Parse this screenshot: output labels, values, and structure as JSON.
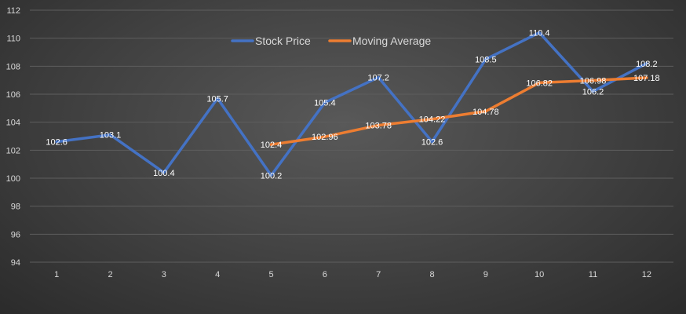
{
  "chart_data": {
    "type": "line",
    "x": [
      1,
      2,
      3,
      4,
      5,
      6,
      7,
      8,
      9,
      10,
      11,
      12
    ],
    "series": [
      {
        "name": "Stock Price",
        "color": "#4472c4",
        "values": [
          102.6,
          103.1,
          100.4,
          105.7,
          100.2,
          105.4,
          107.2,
          102.6,
          108.5,
          110.4,
          106.2,
          108.2
        ],
        "labels": [
          "102.6",
          "103.1",
          "100.4",
          "105.7",
          "100.2",
          "105.4",
          "107.2",
          "102.6",
          "108.5",
          "110.4",
          "106.2",
          "108.2"
        ]
      },
      {
        "name": "Moving Average",
        "color": "#ed7d31",
        "values": [
          null,
          null,
          null,
          null,
          102.4,
          102.96,
          103.78,
          104.22,
          104.78,
          106.82,
          106.98,
          107.18
        ],
        "labels": [
          "",
          "",
          "",
          "",
          "102.4",
          "102.96",
          "103.78",
          "104.22",
          "104.78",
          "106.82",
          "106.98",
          "107.18"
        ]
      }
    ],
    "ylim": [
      94,
      112
    ],
    "yticks": [
      "94",
      "96",
      "98",
      "100",
      "102",
      "104",
      "106",
      "108",
      "110",
      "112"
    ],
    "xticks": [
      "1",
      "2",
      "3",
      "4",
      "5",
      "6",
      "7",
      "8",
      "9",
      "10",
      "11",
      "12"
    ],
    "grid": true,
    "legend_position": "top-center",
    "title": "",
    "xlabel": "",
    "ylabel": ""
  }
}
